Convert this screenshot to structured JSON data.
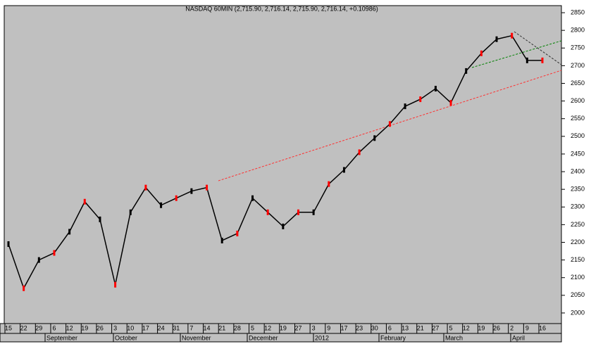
{
  "chart_data": {
    "type": "line",
    "title": "NASDAQ 60MIN (2,715.90, 2,716.14, 2,715.90, 2,716.14, +0.10986)",
    "categories": [
      "15",
      "22",
      "29",
      "6",
      "12",
      "19",
      "26",
      "3",
      "10",
      "17",
      "24",
      "31",
      "7",
      "14",
      "21",
      "28",
      "5",
      "12",
      "19",
      "27",
      "3",
      "9",
      "17",
      "23",
      "30",
      "6",
      "13",
      "21",
      "27",
      "5",
      "12",
      "19",
      "26",
      "2",
      "9",
      "16"
    ],
    "month_labels": [
      "September",
      "October",
      "November",
      "December",
      "2012",
      "February",
      "March",
      "April"
    ],
    "series": [
      {
        "name": "NASDAQ",
        "color": "#000000",
        "values": [
          2195,
          2070,
          2150,
          2170,
          2230,
          2315,
          2265,
          2080,
          2285,
          2355,
          2305,
          2325,
          2345,
          2355,
          2205,
          2225,
          2325,
          2285,
          2245,
          2285,
          2285,
          2365,
          2405,
          2455,
          2495,
          2535,
          2585,
          2605,
          2635,
          2595,
          2685,
          2735,
          2775,
          2785,
          2715,
          2715
        ]
      }
    ],
    "ylim": [
      1970,
      2870
    ],
    "yticks": [
      2000,
      2050,
      2100,
      2150,
      2200,
      2250,
      2300,
      2350,
      2400,
      2450,
      2500,
      2550,
      2600,
      2650,
      2700,
      2750,
      2800,
      2850
    ],
    "grid": false
  }
}
